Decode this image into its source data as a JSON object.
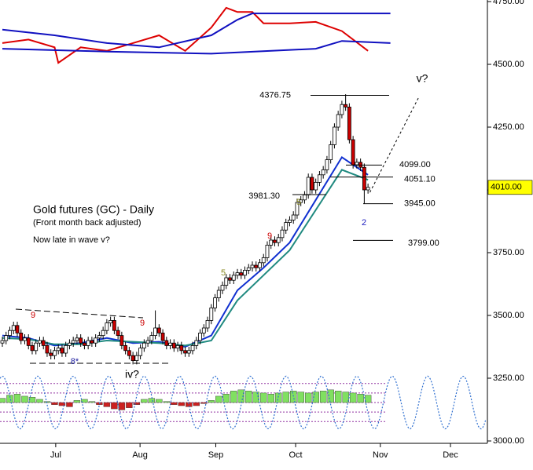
{
  "chart_data": {
    "type": "candlestick",
    "title": "Gold futures (GC) - Daily",
    "subtitle": "(Front month back adjusted)",
    "note": "Now late in wave v?",
    "up_color": "#ffffff",
    "down_color": "#cc0000",
    "open": [
      3390,
      3400,
      3420,
      3440,
      3460,
      3430,
      3400,
      3410,
      3380,
      3360,
      3390,
      3400,
      3380,
      3350,
      3340,
      3360,
      3370,
      3350,
      3380,
      3390,
      3400,
      3410,
      3390,
      3380,
      3400,
      3390,
      3410,
      3420,
      3440,
      3470,
      3480,
      3440,
      3420,
      3380,
      3360,
      3340,
      3320,
      3340,
      3370,
      3390,
      3400,
      3420,
      3450,
      3430,
      3400,
      3380,
      3390,
      3370,
      3380,
      3360,
      3350,
      3360,
      3380,
      3400,
      3430,
      3450,
      3480,
      3530,
      3570,
      3600,
      3620,
      3650,
      3640,
      3660,
      3670,
      3660,
      3680,
      3690,
      3700,
      3690,
      3710,
      3730,
      3780,
      3800,
      3790,
      3810,
      3840,
      3870,
      3880,
      3900,
      3950,
      3960,
      3980,
      4050,
      4000,
      4030,
      4060,
      4080,
      4120,
      4180,
      4250,
      4300,
      4340,
      4330,
      4200,
      4100,
      4110,
      4090,
      4000
    ],
    "high": [
      3415,
      3435,
      3455,
      3475,
      3475,
      3445,
      3425,
      3425,
      3395,
      3405,
      3415,
      3415,
      3395,
      3365,
      3375,
      3385,
      3385,
      3395,
      3405,
      3415,
      3425,
      3425,
      3405,
      3415,
      3415,
      3425,
      3435,
      3455,
      3485,
      3495,
      3495,
      3455,
      3435,
      3395,
      3375,
      3355,
      3355,
      3385,
      3405,
      3415,
      3435,
      3520,
      3465,
      3445,
      3415,
      3405,
      3405,
      3395,
      3395,
      3375,
      3375,
      3395,
      3415,
      3445,
      3465,
      3495,
      3545,
      3585,
      3615,
      3635,
      3665,
      3665,
      3675,
      3685,
      3685,
      3695,
      3705,
      3715,
      3715,
      3725,
      3745,
      3795,
      3815,
      3815,
      3825,
      3855,
      3885,
      3895,
      3915,
      3965,
      3975,
      3995,
      4065,
      4065,
      4045,
      4075,
      4095,
      4135,
      4195,
      4265,
      4315,
      4355,
      4381,
      4345,
      4215,
      4125,
      4125,
      4105,
      4025
    ],
    "low": [
      3375,
      3385,
      3405,
      3425,
      3415,
      3385,
      3385,
      3365,
      3345,
      3345,
      3375,
      3365,
      3335,
      3325,
      3325,
      3345,
      3335,
      3335,
      3365,
      3375,
      3385,
      3375,
      3365,
      3365,
      3375,
      3375,
      3395,
      3405,
      3425,
      3455,
      3425,
      3405,
      3365,
      3345,
      3325,
      3305,
      3305,
      3325,
      3355,
      3375,
      3385,
      3405,
      3415,
      3385,
      3365,
      3365,
      3355,
      3355,
      3345,
      3335,
      3335,
      3345,
      3365,
      3385,
      3415,
      3435,
      3465,
      3515,
      3555,
      3585,
      3605,
      3625,
      3625,
      3645,
      3645,
      3645,
      3665,
      3675,
      3675,
      3675,
      3695,
      3715,
      3765,
      3775,
      3775,
      3795,
      3825,
      3855,
      3865,
      3885,
      3935,
      3945,
      3965,
      3985,
      3985,
      4015,
      4045,
      4065,
      4105,
      4165,
      4235,
      4285,
      4315,
      4185,
      4085,
      4085,
      4075,
      3945,
      3985
    ],
    "close": [
      3400,
      3420,
      3440,
      3460,
      3430,
      3400,
      3410,
      3380,
      3360,
      3390,
      3400,
      3380,
      3350,
      3340,
      3360,
      3370,
      3350,
      3380,
      3390,
      3400,
      3410,
      3390,
      3380,
      3400,
      3390,
      3410,
      3420,
      3440,
      3470,
      3480,
      3440,
      3420,
      3380,
      3360,
      3340,
      3320,
      3340,
      3370,
      3390,
      3400,
      3420,
      3450,
      3430,
      3400,
      3380,
      3390,
      3370,
      3380,
      3360,
      3350,
      3360,
      3380,
      3400,
      3430,
      3450,
      3480,
      3530,
      3570,
      3600,
      3620,
      3650,
      3640,
      3660,
      3670,
      3660,
      3680,
      3690,
      3700,
      3690,
      3710,
      3730,
      3780,
      3800,
      3790,
      3810,
      3840,
      3870,
      3880,
      3900,
      3950,
      3960,
      3980,
      4050,
      4000,
      4030,
      4060,
      4080,
      4120,
      4180,
      4250,
      4300,
      4340,
      4330,
      4200,
      4100,
      4110,
      4090,
      4000,
      4010
    ],
    "xlim": [
      0,
      130
    ],
    "xticks": [
      {
        "value": 14.3,
        "label": "Jul"
      },
      {
        "value": 36.9,
        "label": "Aug"
      },
      {
        "value": 57.2,
        "label": "Sep"
      },
      {
        "value": 78.6,
        "label": "Oct"
      },
      {
        "value": 101.3,
        "label": "Nov"
      },
      {
        "value": 120.1,
        "label": "Dec"
      }
    ],
    "ylim": [
      3000,
      4750
    ],
    "yticks": [
      {
        "value": 3000,
        "label": "3000.00"
      },
      {
        "value": 3250,
        "label": "3250.00"
      },
      {
        "value": 3500,
        "label": "3500.00"
      },
      {
        "value": 3750,
        "label": "3750.00"
      },
      {
        "value": 4000,
        "label": "4000.00"
      },
      {
        "value": 4250,
        "label": "4250.00"
      },
      {
        "value": 4500,
        "label": "4500.00"
      },
      {
        "value": 4750,
        "label": "4750.00"
      }
    ],
    "last_price": {
      "value": 4010,
      "label": "4010.00",
      "color": "#ffff00"
    },
    "moving_averages": [
      {
        "color": "#1030d0",
        "x": [
          0,
          7,
          14,
          21,
          28,
          35,
          42,
          49,
          56,
          63,
          70,
          77,
          84,
          91,
          98
        ],
        "values": [
          3420,
          3410,
          3380,
          3390,
          3410,
          3390,
          3395,
          3375,
          3420,
          3600,
          3690,
          3790,
          3960,
          4130,
          4060
        ]
      },
      {
        "color": "#208a80",
        "x": [
          0,
          7,
          14,
          21,
          28,
          35,
          42,
          49,
          56,
          63,
          70,
          77,
          84,
          91,
          98
        ],
        "values": [
          3410,
          3405,
          3385,
          3385,
          3400,
          3395,
          3390,
          3380,
          3400,
          3560,
          3660,
          3760,
          3920,
          4080,
          4040
        ]
      }
    ],
    "projection": {
      "x": [
        98.5,
        111.5
      ],
      "values": [
        3990,
        4366
      ]
    },
    "levels": [
      {
        "value": 4376.75,
        "label": "4376.75"
      },
      {
        "value": 4099,
        "label": "4099.00"
      },
      {
        "value": 4051.1,
        "label": "4051.10"
      },
      {
        "value": 3981.3,
        "label": "3981.30"
      },
      {
        "value": 3945,
        "label": "3945.00"
      },
      {
        "value": 3799,
        "label": "3799.00"
      }
    ],
    "annotations": [
      {
        "text": "9",
        "color": "#cc0000"
      },
      {
        "text": "8*",
        "color": "#2020a0"
      },
      {
        "text": "9",
        "color": "#cc0000"
      },
      {
        "text": "iv?",
        "color": "#000000"
      },
      {
        "text": "5",
        "color": "#888820"
      },
      {
        "text": "9",
        "color": "#cc0000"
      },
      {
        "text": "5",
        "color": "#888820"
      },
      {
        "text": "2",
        "color": "#2020c0"
      },
      {
        "text": "v?",
        "color": "#000000"
      }
    ],
    "indicator": {
      "ylim": [
        0,
        100
      ],
      "series": [
        {
          "color": "#dd0000",
          "x": [
            0,
            7,
            14,
            15,
            21,
            28,
            35,
            42,
            49,
            56,
            60,
            63,
            67,
            70,
            77,
            84,
            91,
            98
          ],
          "values": [
            39,
            44,
            33,
            11,
            33,
            28,
            39,
            50,
            28,
            61,
            89,
            83,
            83,
            67,
            67,
            69,
            56,
            28
          ]
        },
        {
          "color": "#1010c0",
          "x": [
            0,
            14,
            28,
            42,
            56,
            63,
            67,
            104
          ],
          "values": [
            58,
            50,
            39,
            33,
            50,
            72,
            81,
            81
          ]
        },
        {
          "color": "#1010c0",
          "x": [
            0,
            28,
            56,
            84,
            91,
            104
          ],
          "values": [
            31,
            27,
            24,
            31,
            42,
            39
          ]
        }
      ]
    },
    "oscillator": {
      "ylim": [
        -130,
        130
      ],
      "pos_color": "#80e060",
      "neg_color": "#cc2020",
      "x": [
        0,
        2,
        4,
        6,
        8,
        10,
        12,
        14,
        16,
        18,
        20,
        22,
        24,
        26,
        28,
        30,
        32,
        34,
        36,
        38,
        40,
        42,
        44,
        46,
        48,
        50,
        52,
        54,
        56,
        58,
        60,
        62,
        64,
        66,
        68,
        70,
        72,
        74,
        76,
        78,
        80,
        82,
        84,
        86,
        88,
        90,
        92,
        94,
        96,
        98
      ],
      "values": [
        20,
        35,
        40,
        30,
        25,
        15,
        5,
        -10,
        -15,
        -20,
        10,
        15,
        5,
        -10,
        -20,
        -30,
        -35,
        -25,
        -10,
        15,
        20,
        15,
        5,
        -10,
        -15,
        -20,
        -15,
        -5,
        10,
        30,
        40,
        55,
        60,
        55,
        50,
        45,
        40,
        45,
        50,
        55,
        50,
        45,
        50,
        55,
        60,
        55,
        50,
        45,
        40,
        35
      ],
      "levels": [
        90,
        45,
        0,
        -45,
        -90
      ],
      "level_color": "#9030a0",
      "cycle": {
        "period": 9.5,
        "amplitude": 125,
        "color": "#3070d0"
      }
    }
  }
}
